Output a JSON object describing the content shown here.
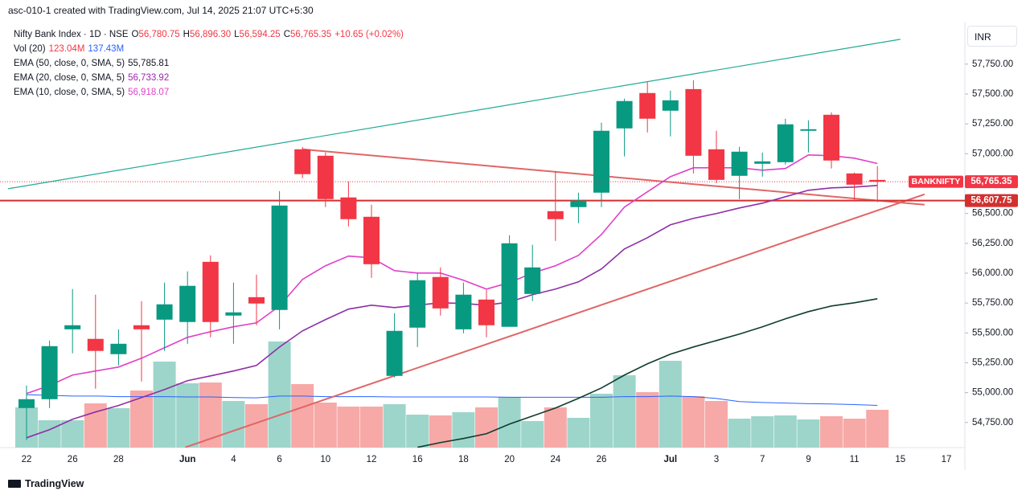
{
  "header": {
    "caption": "asc-010-1 created with TradingView.com, Jul 14, 2025 21:07 UTC+5:30",
    "currency": "INR",
    "brand": "TradingView"
  },
  "legend": {
    "symbol": "Nifty Bank Index · 1D · NSE",
    "ohlc": [
      {
        "key": "O",
        "value": "56,780.75"
      },
      {
        "key": "H",
        "value": "56,896.30"
      },
      {
        "key": "L",
        "value": "56,594.25"
      },
      {
        "key": "C",
        "value": "56,765.35"
      }
    ],
    "change": "+10.65 (+0.02%)",
    "studies": [
      {
        "name": "Vol (20)",
        "values": [
          {
            "text": "123.04M",
            "color": "#f23645"
          },
          {
            "text": "137.43M",
            "color": "#2962ff"
          }
        ]
      },
      {
        "name": "EMA (50, close, 0, SMA, 5)",
        "values": [
          {
            "text": "55,785.81",
            "color": "#131722"
          }
        ]
      },
      {
        "name": "EMA (20, close, 0, SMA, 5)",
        "values": [
          {
            "text": "56,733.92",
            "color": "#9c27b0"
          }
        ]
      },
      {
        "name": "EMA (10, close, 0, SMA, 5)",
        "values": [
          {
            "text": "56,918.07",
            "color": "#e040c8"
          }
        ]
      }
    ]
  },
  "chart_data": {
    "type": "candlestick",
    "categories": [
      "22",
      null,
      "26",
      null,
      "28",
      null,
      null,
      "Jun",
      null,
      "4",
      null,
      "6",
      null,
      "10",
      null,
      "12",
      null,
      "16",
      null,
      "18",
      null,
      "20",
      null,
      "24",
      null,
      "26",
      null,
      null,
      "Jul",
      null,
      "3",
      null,
      "7",
      null,
      "9",
      null,
      "11",
      null,
      "15",
      null,
      "17"
    ],
    "open": [
      54871,
      54945,
      55530,
      55450,
      55322,
      55564,
      55611,
      55591,
      56095,
      55645,
      55799,
      55692,
      57037,
      56983,
      56634,
      56472,
      55140,
      55544,
      55968,
      55530,
      55779,
      55551,
      55826,
      56519,
      56553,
      56674,
      57212,
      57508,
      57360,
      57541,
      57037,
      56815,
      56916,
      56929,
      57192,
      57326,
      56835,
      56780.75,
      null,
      null,
      null
    ],
    "high": [
      55060,
      55436,
      55867,
      55820,
      55530,
      55766,
      55921,
      56015,
      56149,
      55921,
      55988,
      56687,
      57057,
      57010,
      56768,
      56573,
      55665,
      56001,
      56048,
      55921,
      55860,
      56317,
      56237,
      56855,
      56674,
      57259,
      57461,
      57602,
      57528,
      57615,
      57192,
      57057,
      57010,
      57293,
      57279,
      57346,
      56842,
      56896.3,
      null,
      null,
      null
    ],
    "low": [
      54602,
      54871,
      55329,
      55033,
      55228,
      55093,
      55349,
      55409,
      55463,
      55409,
      55564,
      55530,
      56795,
      56553,
      56391,
      55961,
      55127,
      55382,
      55645,
      55497,
      55463,
      55551,
      55766,
      56270,
      56418,
      56553,
      56977,
      57178,
      57145,
      56835,
      56754,
      56620,
      56808,
      56909,
      57010,
      56876,
      56607,
      56594.25,
      null,
      null,
      null
    ],
    "close": [
      54945,
      55389,
      55564,
      55349,
      55409,
      55530,
      55739,
      55894,
      55591,
      55672,
      55746,
      56566,
      56829,
      56620,
      56452,
      56075,
      55517,
      55941,
      55705,
      55820,
      55564,
      56250,
      56048,
      56452,
      56607,
      57192,
      57441,
      57293,
      57447,
      56983,
      56781,
      57017,
      56936,
      57246,
      57205,
      56943,
      56741,
      56765.35,
      null,
      null,
      null
    ],
    "up_color": "#089981",
    "down_color": "#f23645",
    "volume": {
      "values": [
        130.9,
        89.0,
        89.0,
        144.0,
        128.3,
        185.9,
        280.1,
        209.4,
        212.0,
        151.8,
        141.4,
        345.5,
        206.8,
        146.6,
        133.5,
        133.5,
        141.4,
        107.3,
        104.7,
        115.2,
        130.9,
        164.9,
        86.4,
        130.9,
        96.9,
        175.4,
        235.6,
        180.6,
        282.7,
        167.5,
        151.8,
        94.2,
        102.1,
        104.7,
        91.6,
        102.1,
        94.2,
        123.04,
        null,
        null,
        null
      ],
      "up_color": "#9dd5cb",
      "down_color": "#f7a9a7",
      "sma": {
        "color": "#2962ff",
        "values": [
          172,
          170,
          168,
          168,
          166,
          166,
          166,
          165,
          165,
          163,
          162,
          168,
          168,
          166,
          166,
          166,
          165,
          165,
          165,
          165,
          165,
          164,
          164,
          164,
          164,
          164,
          166,
          166,
          168,
          166,
          160,
          150,
          147,
          145,
          143,
          142,
          140,
          137.43,
          null,
          null,
          null
        ]
      }
    },
    "series": [
      {
        "color": "#e040c8",
        "values": [
          54992,
          55060,
          55147,
          55181,
          55214,
          55288,
          55376,
          55463,
          55510,
          55551,
          55584,
          55725,
          55948,
          56062,
          56143,
          56129,
          56021,
          56001,
          56001,
          55941,
          55867,
          55921,
          56001,
          56062,
          56149,
          56324,
          56553,
          56681,
          56808,
          56882,
          56882,
          56882,
          56862,
          56876,
          56990,
          56983,
          56963,
          56918.07,
          null,
          null,
          null
        ]
      },
      {
        "color": "#8e2fa6",
        "values": [
          54622,
          54690,
          54777,
          54838,
          54892,
          54959,
          55026,
          55100,
          55140,
          55181,
          55228,
          55382,
          55517,
          55611,
          55699,
          55732,
          55712,
          55732,
          55752,
          55746,
          55732,
          55759,
          55820,
          55867,
          55927,
          56035,
          56203,
          56297,
          56405,
          56459,
          56499,
          56546,
          56586,
          56640,
          56694,
          56714,
          56721,
          56733.92,
          null,
          null,
          null
        ]
      },
      {
        "color": "#0f3d2e",
        "values": [
          null,
          null,
          null,
          null,
          null,
          null,
          null,
          null,
          null,
          null,
          null,
          null,
          null,
          null,
          null,
          null,
          null,
          54542,
          54582,
          54616,
          54656,
          54737,
          54804,
          54871,
          54952,
          55039,
          55147,
          55241,
          55322,
          55382,
          55436,
          55490,
          55551,
          55618,
          55678,
          55725,
          55752,
          55785.81,
          null,
          null,
          null
        ]
      }
    ],
    "trendlines": [
      {
        "color": "#22ab94",
        "x": [
          -0.8,
          38
        ],
        "y": [
          56707,
          57958
        ]
      },
      {
        "color": "#e06666",
        "x": [
          12,
          39.05
        ],
        "y": [
          57037,
          56573
        ]
      },
      {
        "color": "#e06666",
        "x": [
          6.9,
          39.05
        ],
        "y": [
          54542,
          56660
        ]
      }
    ],
    "hline": {
      "value": 56607.75,
      "label": "56,607.75",
      "color": "#d32f2f"
    },
    "last_price": {
      "name": "BANKNIFTY",
      "value": 56765.35,
      "label": "56,765.35",
      "color": "#f23645"
    },
    "ylim": [
      54540,
      58085
    ],
    "yticks": [
      {
        "value": 57750,
        "label": "57,750.00"
      },
      {
        "value": 57500,
        "label": "57,500.00"
      },
      {
        "value": 57250,
        "label": "57,250.00"
      },
      {
        "value": 57000,
        "label": "57,000.00"
      },
      {
        "value": 56500,
        "label": "56,500.00"
      },
      {
        "value": 56250,
        "label": "56,250.00"
      },
      {
        "value": 56000,
        "label": "56,000.00"
      },
      {
        "value": 55750,
        "label": "55,750.00"
      },
      {
        "value": 55500,
        "label": "55,500.00"
      },
      {
        "value": 55250,
        "label": "55,250.00"
      },
      {
        "value": 55000,
        "label": "55,000.00"
      },
      {
        "value": 54750,
        "label": "54,750.00"
      }
    ],
    "grid": false
  }
}
